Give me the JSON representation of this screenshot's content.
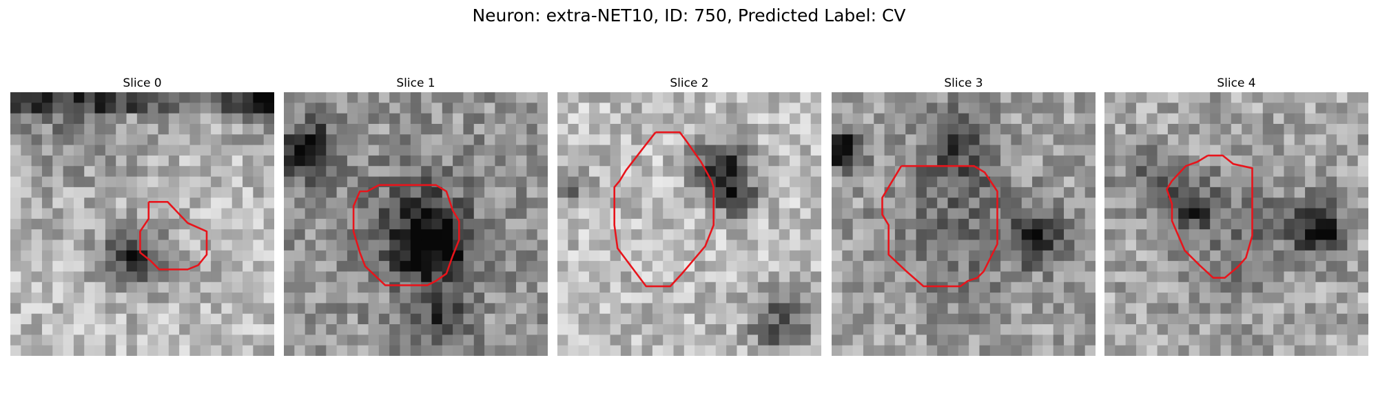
{
  "figure": {
    "title": "Neuron: extra-NET10, ID: 750, Predicted Label: CV",
    "contour_color": "#e8141b"
  },
  "slices": [
    {
      "label": "Slice 0"
    },
    {
      "label": "Slice 1"
    },
    {
      "label": "Slice 2"
    },
    {
      "label": "Slice 3"
    },
    {
      "label": "Slice 4"
    }
  ]
}
